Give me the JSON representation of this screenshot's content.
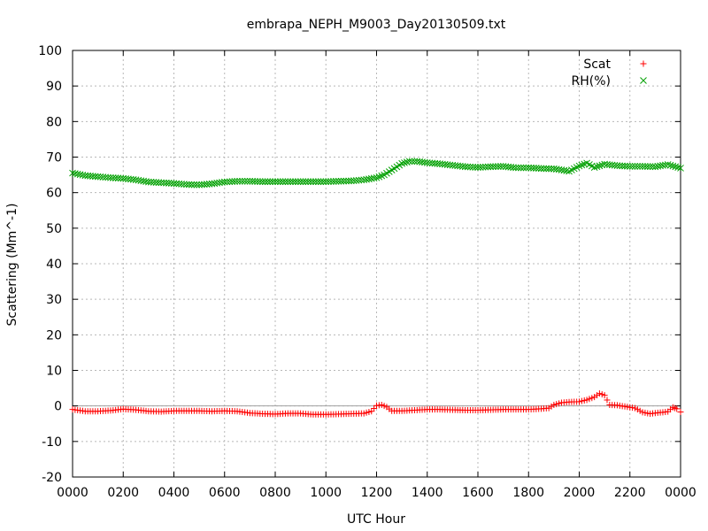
{
  "chart_data": {
    "type": "scatter",
    "title": "embrapa_NEPH_M9003_Day20130509.txt",
    "xlabel": "UTC Hour",
    "ylabel": "Scattering (Mm^-1)",
    "xlim": [
      0,
      24
    ],
    "ylim": [
      -20,
      100
    ],
    "grid": true,
    "legend_position": "top-right",
    "x_ticks": [
      {
        "value": 0,
        "label": "0000"
      },
      {
        "value": 2,
        "label": "0200"
      },
      {
        "value": 4,
        "label": "0400"
      },
      {
        "value": 6,
        "label": "0600"
      },
      {
        "value": 8,
        "label": "0800"
      },
      {
        "value": 10,
        "label": "1000"
      },
      {
        "value": 12,
        "label": "1200"
      },
      {
        "value": 14,
        "label": "1400"
      },
      {
        "value": 16,
        "label": "1600"
      },
      {
        "value": 18,
        "label": "1800"
      },
      {
        "value": 20,
        "label": "2000"
      },
      {
        "value": 22,
        "label": "2200"
      },
      {
        "value": 24,
        "label": "0000"
      }
    ],
    "y_ticks": [
      {
        "value": -20,
        "label": "-20"
      },
      {
        "value": -10,
        "label": "-10"
      },
      {
        "value": 0,
        "label": "0"
      },
      {
        "value": 10,
        "label": "10"
      },
      {
        "value": 20,
        "label": "20"
      },
      {
        "value": 30,
        "label": "30"
      },
      {
        "value": 40,
        "label": "40"
      },
      {
        "value": 50,
        "label": "50"
      },
      {
        "value": 60,
        "label": "60"
      },
      {
        "value": 70,
        "label": "70"
      },
      {
        "value": 80,
        "label": "80"
      },
      {
        "value": 90,
        "label": "90"
      },
      {
        "value": 100,
        "label": "100"
      }
    ],
    "zero_line": 0,
    "series": [
      {
        "name": "Scat",
        "marker": "plus",
        "color": "#ff0000",
        "x": [
          0,
          0.5,
          1,
          1.5,
          2,
          2.5,
          3,
          3.5,
          4,
          4.5,
          5,
          5.5,
          6,
          6.5,
          7,
          7.5,
          8,
          8.5,
          9,
          9.5,
          10,
          10.5,
          11,
          11.5,
          11.8,
          12,
          12.2,
          12.4,
          12.6,
          13,
          13.5,
          14,
          14.5,
          15,
          15.5,
          16,
          16.5,
          17,
          17.5,
          18,
          18.5,
          18.8,
          19,
          19.3,
          19.6,
          20,
          20.3,
          20.6,
          20.8,
          21,
          21.2,
          21.5,
          22,
          22.2,
          22.5,
          22.8,
          23,
          23.3,
          23.5,
          23.7,
          23.85,
          24
        ],
        "y": [
          -1,
          -1.5,
          -1.5,
          -1.3,
          -0.9,
          -1.1,
          -1.5,
          -1.6,
          -1.4,
          -1.4,
          -1.4,
          -1.5,
          -1.4,
          -1.5,
          -2,
          -2.2,
          -2.3,
          -2.1,
          -2.1,
          -2.4,
          -2.4,
          -2.3,
          -2.2,
          -2.1,
          -1.5,
          0.1,
          0.3,
          -0.3,
          -1.4,
          -1.4,
          -1.2,
          -1,
          -1,
          -1.1,
          -1.2,
          -1.2,
          -1.1,
          -1,
          -1,
          -1,
          -0.8,
          -0.6,
          0.3,
          0.9,
          1.1,
          1.2,
          1.7,
          2.5,
          3.5,
          3,
          0.3,
          0.2,
          -0.4,
          -0.6,
          -1.8,
          -2.2,
          -2,
          -1.8,
          -1.6,
          -0.4,
          -0.8,
          -1.7
        ]
      },
      {
        "name": "RH(%)",
        "marker": "cross",
        "color": "#00a000",
        "x": [
          0,
          0.5,
          1,
          1.5,
          2,
          2.5,
          3,
          3.5,
          4,
          4.5,
          5,
          5.5,
          6,
          6.5,
          7,
          7.5,
          8,
          8.5,
          9,
          9.5,
          10,
          10.5,
          11,
          11.5,
          12,
          12.3,
          12.7,
          13,
          13.3,
          13.6,
          14,
          14.5,
          15,
          15.5,
          16,
          16.5,
          17,
          17.5,
          18,
          18.5,
          19,
          19.3,
          19.6,
          20,
          20.3,
          20.6,
          21,
          21.5,
          22,
          22.5,
          23,
          23.5,
          24
        ],
        "y": [
          65.5,
          64.8,
          64.5,
          64.2,
          64,
          63.6,
          63,
          62.8,
          62.6,
          62.3,
          62.2,
          62.5,
          63,
          63.2,
          63.2,
          63.1,
          63.1,
          63.1,
          63.1,
          63.1,
          63.1,
          63.2,
          63.3,
          63.6,
          64.2,
          65,
          66.8,
          68.2,
          68.8,
          68.8,
          68.4,
          68.1,
          67.7,
          67.3,
          67.1,
          67.3,
          67.4,
          67,
          67,
          66.8,
          66.7,
          66.4,
          66,
          67.5,
          68.3,
          67.1,
          68,
          67.6,
          67.4,
          67.4,
          67.3,
          67.9,
          66.9
        ]
      }
    ]
  }
}
